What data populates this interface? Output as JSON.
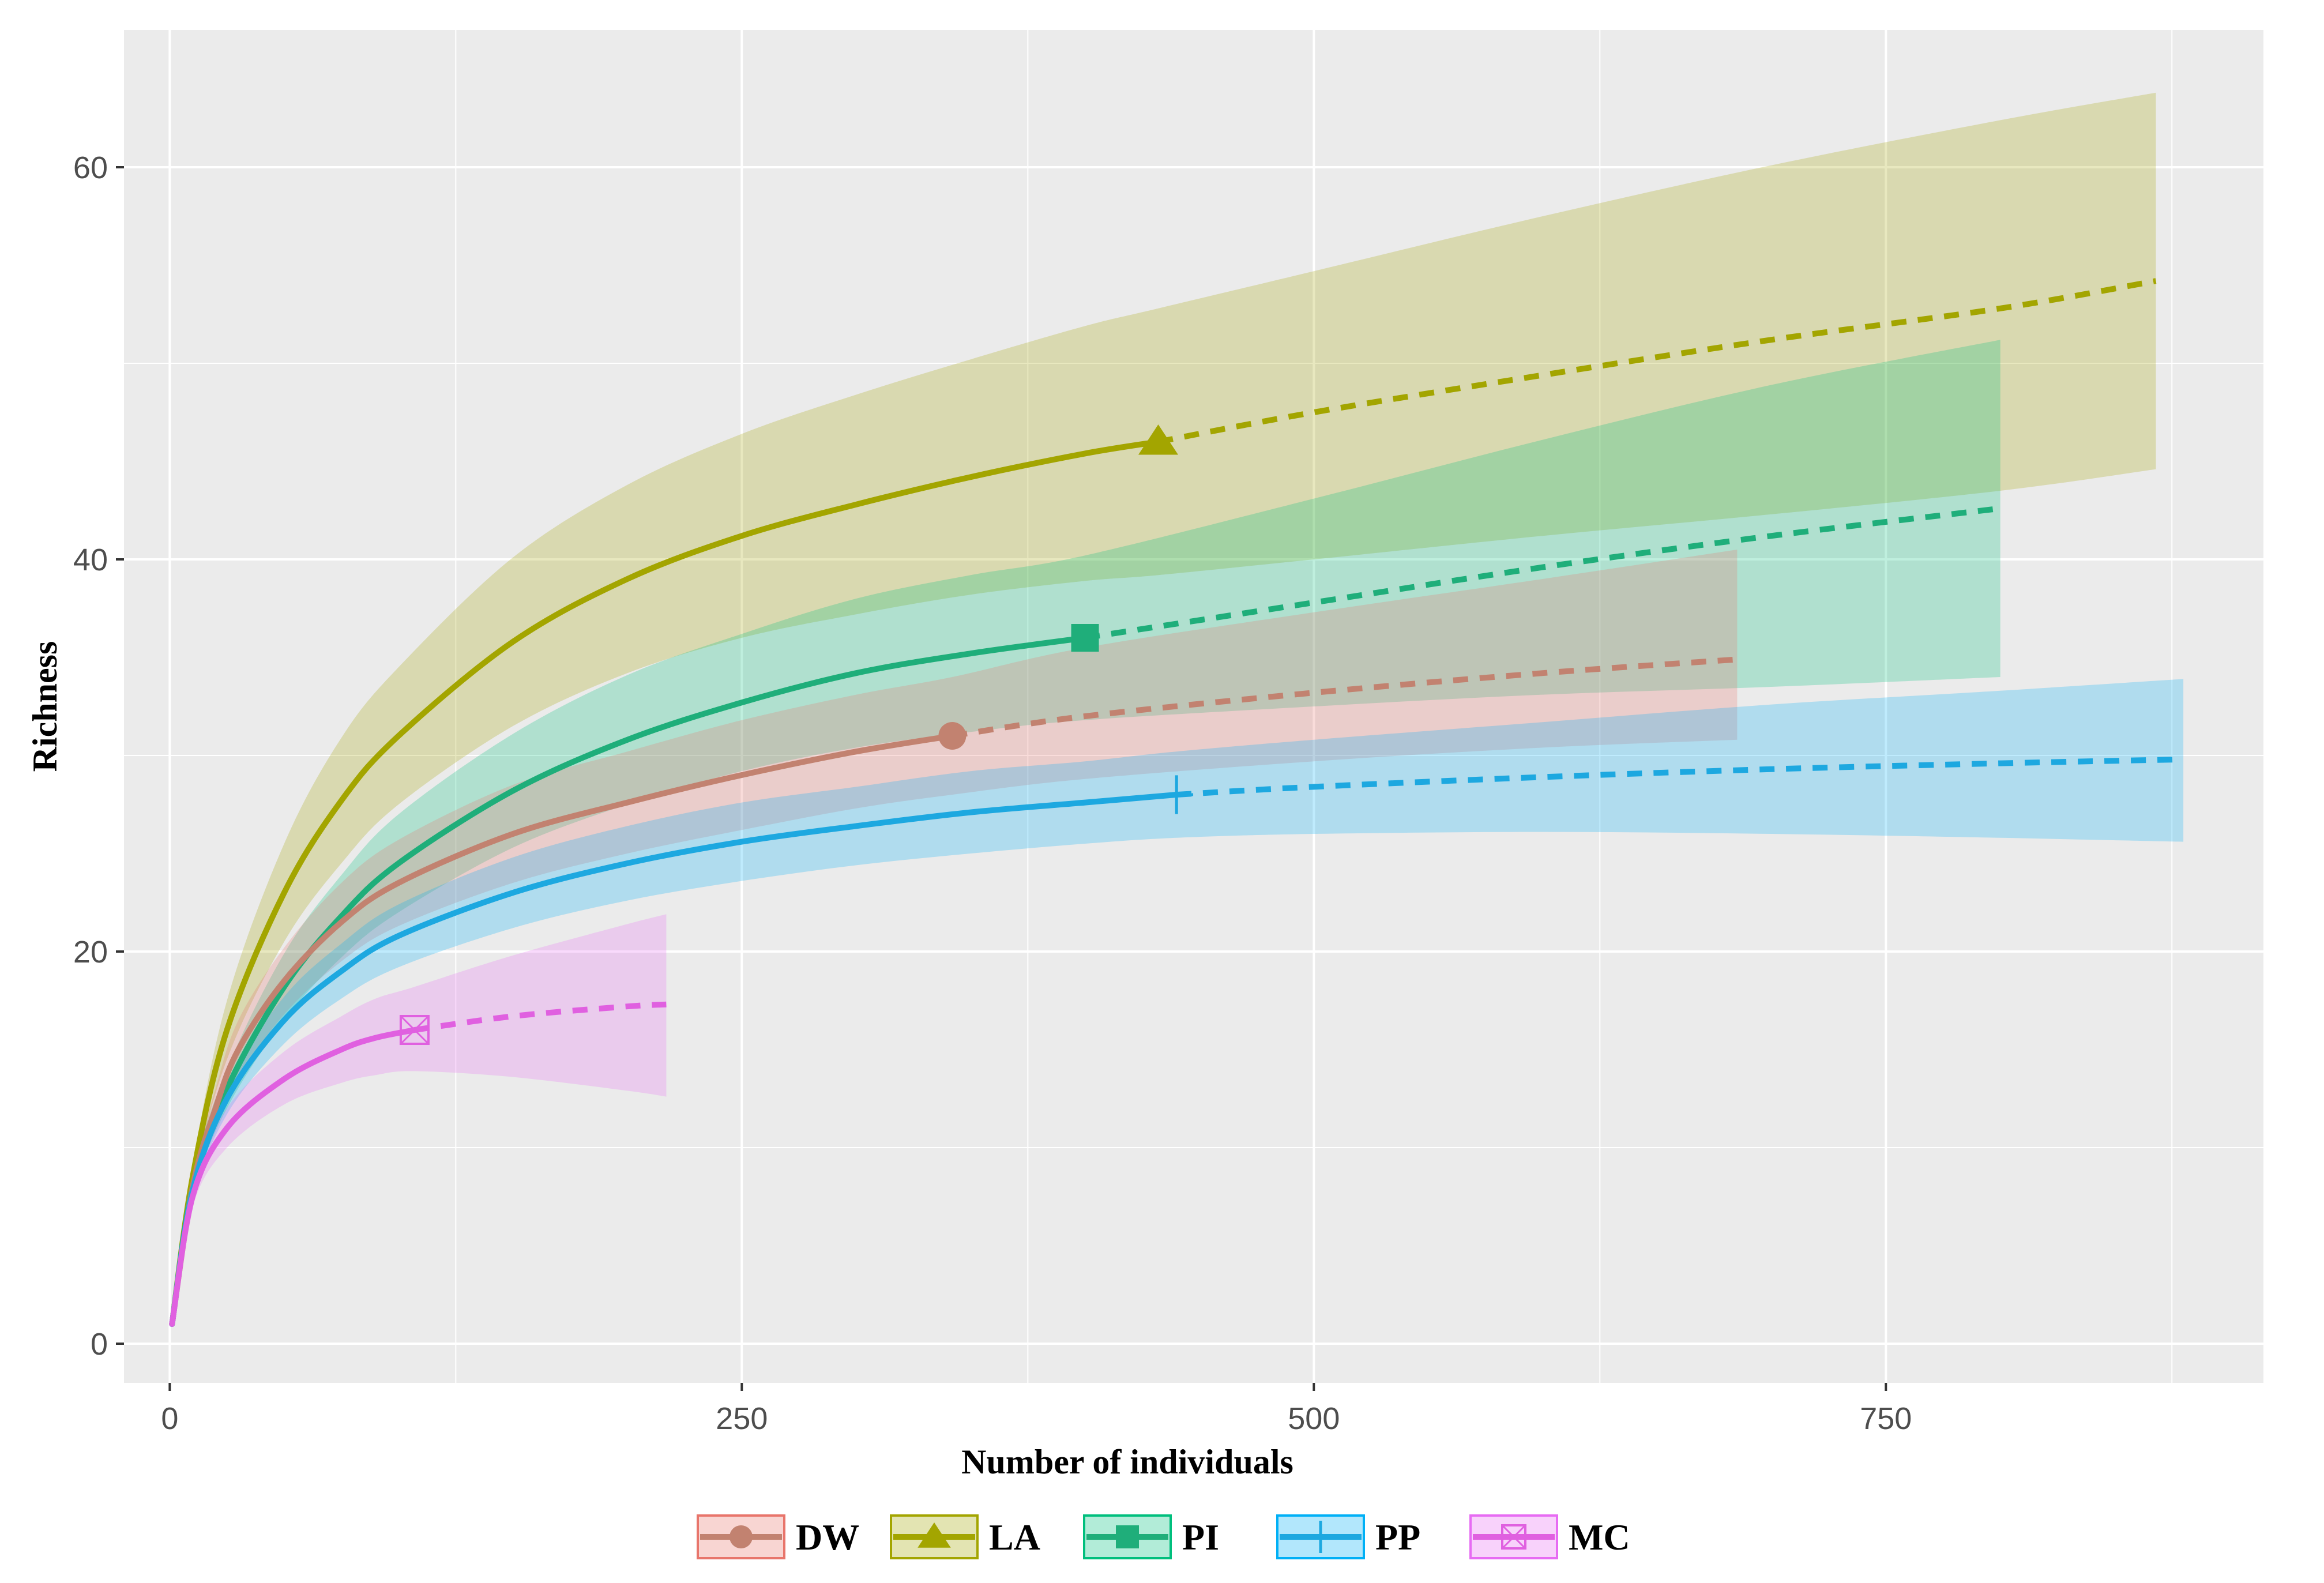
{
  "chart_data": {
    "type": "line",
    "title": "",
    "xlabel": "Number of individuals",
    "ylabel": "Richness",
    "xlim": [
      -20,
      915
    ],
    "ylim": [
      -2,
      67
    ],
    "xticks": [
      0,
      250,
      500,
      750
    ],
    "xtick_labels": [
      "0",
      "250",
      "500",
      "750"
    ],
    "yticks": [
      0,
      20,
      40,
      60
    ],
    "ytick_labels": [
      "0",
      "20",
      "40",
      "60"
    ],
    "grid": true,
    "legend_position": "bottom",
    "series": [
      {
        "name": "DW",
        "color": "#E8756B",
        "line_color": "#C28270",
        "marker": "circle",
        "x": [
          1,
          10,
          20,
          30,
          50,
          75,
          100,
          150,
          200,
          250,
          300,
          342,
          400,
          500,
          600,
          685
        ],
        "y": [
          1,
          8,
          12,
          15,
          18.5,
          21.5,
          23.5,
          26,
          27.6,
          29,
          30.2,
          31,
          32,
          33.2,
          34.2,
          34.9
        ],
        "lower": [
          1,
          7.5,
          11,
          13.5,
          16.8,
          19.5,
          21.3,
          23.5,
          25,
          26.2,
          27.3,
          28,
          28.8,
          29.7,
          30.4,
          30.8
        ],
        "upper": [
          1,
          8.5,
          13,
          16.5,
          20.2,
          23.5,
          25.7,
          28.5,
          30.2,
          31.8,
          33.1,
          34,
          35.5,
          37.3,
          39,
          40.5
        ],
        "observed_n": 342
      },
      {
        "name": "LA",
        "color": "#A3A500",
        "line_color": "#A3A500",
        "marker": "triangle",
        "x": [
          1,
          10,
          25,
          50,
          75,
          100,
          150,
          200,
          250,
          300,
          350,
          400,
          432,
          500,
          600,
          700,
          800,
          868
        ],
        "y": [
          1,
          8.5,
          16,
          23,
          27.7,
          31,
          35.8,
          39,
          41.2,
          42.8,
          44.2,
          45.4,
          46,
          47.5,
          49.4,
          51.2,
          52.8,
          54.2
        ],
        "lower": [
          1,
          8,
          14.5,
          20.5,
          24.5,
          27.5,
          31.5,
          34.2,
          36,
          37.2,
          38.2,
          38.9,
          39.2,
          40,
          41.2,
          42.3,
          43.5,
          44.6
        ],
        "upper": [
          1,
          9,
          17.5,
          25.5,
          30.9,
          34.5,
          40.1,
          43.8,
          46.4,
          48.4,
          50.2,
          51.9,
          52.8,
          54.7,
          57.5,
          60.1,
          62.4,
          63.8
        ],
        "observed_n": 432
      },
      {
        "name": "PI",
        "color": "#00BF7D",
        "line_color": "#1FAE7A",
        "marker": "square",
        "x": [
          1,
          10,
          25,
          50,
          75,
          100,
          150,
          200,
          250,
          300,
          350,
          400,
          500,
          600,
          700,
          800
        ],
        "y": [
          1,
          8,
          13,
          18.2,
          21.8,
          24.5,
          28.2,
          30.8,
          32.7,
          34.2,
          35.2,
          36,
          37.8,
          39.6,
          41.2,
          42.6
        ],
        "lower": [
          1,
          7.5,
          12,
          16.5,
          19.7,
          22,
          25.3,
          27.5,
          29.2,
          30.4,
          31.2,
          31.8,
          32.5,
          33.1,
          33.5,
          34
        ],
        "upper": [
          1,
          8.5,
          14,
          19.9,
          23.9,
          27,
          31.1,
          34.1,
          36.2,
          38,
          39.2,
          40.2,
          43.1,
          46.1,
          48.9,
          51.2
        ],
        "observed_n": 400
      },
      {
        "name": "PP",
        "color": "#00B0F6",
        "line_color": "#1DA8E0",
        "marker": "plus",
        "x": [
          1,
          10,
          25,
          50,
          75,
          100,
          150,
          200,
          250,
          300,
          350,
          400,
          440,
          500,
          600,
          700,
          800,
          880
        ],
        "y": [
          1,
          7.8,
          12.5,
          16.5,
          19,
          20.8,
          23,
          24.5,
          25.6,
          26.4,
          27.1,
          27.6,
          28,
          28.4,
          28.9,
          29.3,
          29.6,
          29.8
        ],
        "lower": [
          1,
          7.3,
          11.7,
          15.3,
          17.6,
          19.2,
          21.2,
          22.6,
          23.6,
          24.4,
          25,
          25.5,
          25.8,
          26,
          26.1,
          26,
          25.8,
          25.6
        ],
        "upper": [
          1,
          8.3,
          13.3,
          17.7,
          20.4,
          22.4,
          24.8,
          26.4,
          27.6,
          28.4,
          29.2,
          29.7,
          30.2,
          30.8,
          31.7,
          32.6,
          33.3,
          33.9
        ],
        "observed_n": 440
      },
      {
        "name": "MC",
        "color": "#E76BF3",
        "line_color": "#E060E0",
        "marker": "square-x",
        "x": [
          1,
          10,
          25,
          50,
          75,
          90,
          107,
          150,
          200,
          217
        ],
        "y": [
          1,
          7.5,
          11,
          13.5,
          15,
          15.6,
          16,
          16.7,
          17.2,
          17.3
        ],
        "lower": [
          1,
          7,
          10,
          12.2,
          13.3,
          13.7,
          13.9,
          13.6,
          12.9,
          12.6
        ],
        "upper": [
          1,
          8,
          12,
          14.9,
          16.7,
          17.6,
          18.2,
          19.8,
          21.4,
          21.9
        ],
        "observed_n": 107
      }
    ]
  }
}
